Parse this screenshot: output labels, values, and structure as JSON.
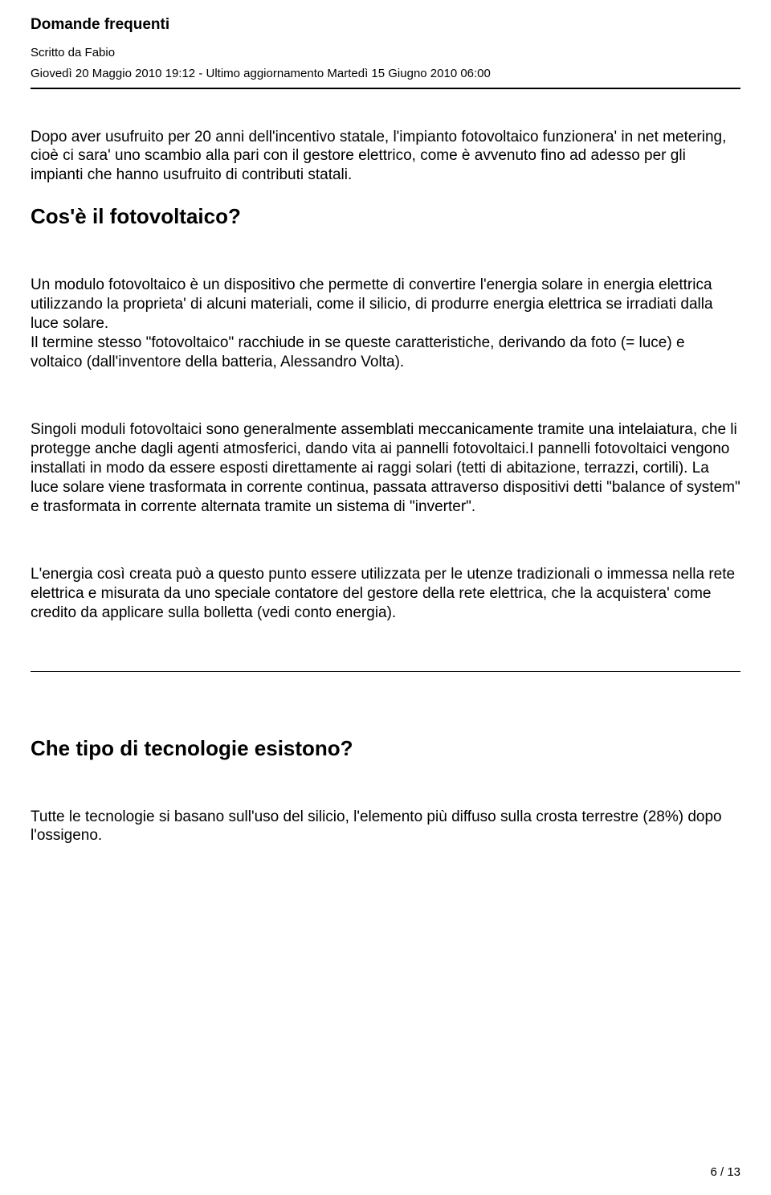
{
  "header": {
    "title": "Domande frequenti",
    "author_line": "Scritto da Fabio",
    "date_line": "Giovedì 20 Maggio 2010 19:12 - Ultimo aggiornamento Martedì 15 Giugno 2010 06:00"
  },
  "content": {
    "intro": "Dopo  aver usufruito per 20 anni dell'incentivo statale, l'impianto  fotovoltaico funzionera' in net metering, cioè ci sara' uno scambio  alla pari con il gestore elettrico, come è avvenuto fino ad adesso  per gli impianti che hanno usufruito di contributi statali.",
    "h1": " Cos'è  il fotovoltaico?",
    "p1": "Un  modulo fotovoltaico è un dispositivo che permette di convertire  l'energia solare in energia elettrica utilizzando la proprieta' di  alcuni materiali, come il silicio, di produrre energia elettrica se  irradiati dalla luce solare.",
    "p1b": "Il  termine stesso \"fotovoltaico\" racchiude in se queste  caratteristiche, derivando da foto (= luce) e voltaico  (dall'inventore della batteria, Alessandro Volta).",
    "p2": "Singoli  moduli fotovoltaici sono generalmente assemblati meccanicamente  tramite una intelaiatura, che li protegge anche dagli agenti  atmosferici, dando vita ai pannelli fotovoltaici.I pannelli  fotovoltaici vengono installati in modo da essere esposti  direttamente ai raggi solari (tetti di abitazione, terrazzi,  cortili). La luce solare viene trasformata in corrente continua, passata attraverso dispositivi detti \"balance of system\" e  trasformata in corrente alternata tramite un sistema di \"inverter\".",
    "p3": "L'energia  così creata può a questo punto essere utilizzata per le utenze  tradizionali o immessa nella rete elettrica e misurata da uno  speciale contatore del gestore della rete elettrica, che la acquistera' come credito da applicare sulla bolletta (vedi conto  energia).",
    "h2": " Che  tipo di tecnologie esistono?",
    "p4": "Tutte  le tecnologie si basano sull'uso del silicio, l'elemento più  diffuso sulla crosta terrestre (28%) dopo l'ossigeno."
  },
  "footer": {
    "page": "6 / 13"
  }
}
